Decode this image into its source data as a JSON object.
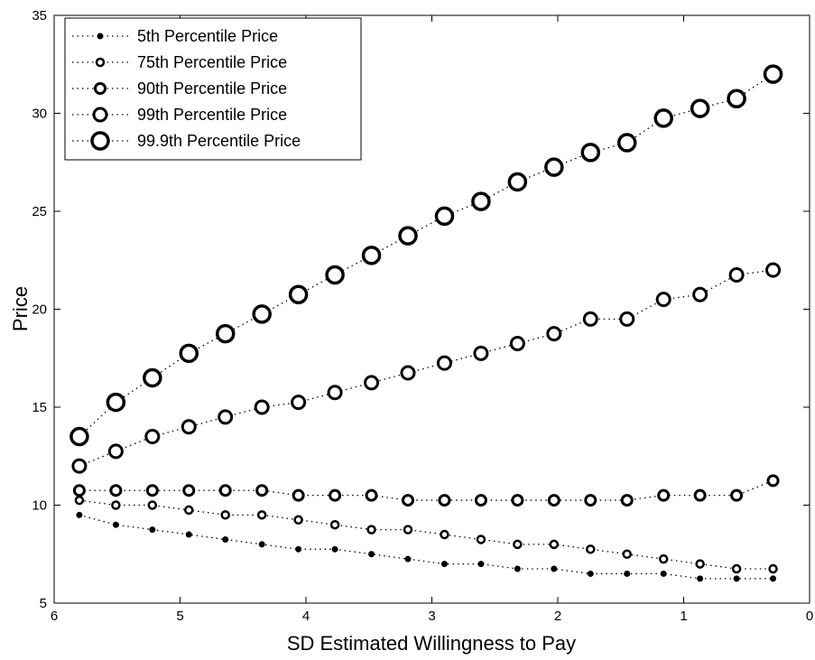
{
  "chart_data": {
    "type": "line",
    "x_label": "SD Estimated Willingness to Pay",
    "y_label": "Price",
    "x": [
      5.8,
      5.51,
      5.22,
      4.93,
      4.64,
      4.35,
      4.06,
      3.77,
      3.48,
      3.19,
      2.9,
      2.61,
      2.32,
      2.03,
      1.74,
      1.45,
      1.16,
      0.87,
      0.58,
      0.29
    ],
    "xlim": [
      6,
      0
    ],
    "xticks": [
      6,
      5,
      4,
      3,
      2,
      1,
      0
    ],
    "ylim": [
      5,
      35
    ],
    "yticks": [
      5,
      10,
      15,
      20,
      25,
      30,
      35
    ],
    "legend": "upper left",
    "series": [
      {
        "name": "5th Percentile Price",
        "color": "#000000",
        "values": [
          9.5,
          9,
          8.75,
          8.5,
          8.25,
          8,
          7.75,
          7.75,
          7.5,
          7.25,
          7,
          7,
          6.75,
          6.75,
          6.5,
          6.5,
          6.5,
          6.25,
          6.25,
          6.25
        ]
      },
      {
        "name": "75th Percentile Price",
        "color": "#000000",
        "values": [
          10.25,
          10,
          10,
          9.75,
          9.5,
          9.5,
          9.25,
          9,
          8.75,
          8.75,
          8.5,
          8.25,
          8,
          8,
          7.75,
          7.5,
          7.25,
          7,
          6.75,
          6.75
        ]
      },
      {
        "name": "90th Percentile Price",
        "color": "#000000",
        "values": [
          10.75,
          10.75,
          10.75,
          10.75,
          10.75,
          10.75,
          10.5,
          10.5,
          10.5,
          10.25,
          10.25,
          10.25,
          10.25,
          10.25,
          10.25,
          10.25,
          10.5,
          10.5,
          10.5,
          11.25
        ]
      },
      {
        "name": "99th Percentile Price",
        "color": "#000000",
        "values": [
          12,
          12.75,
          13.5,
          14,
          14.5,
          15,
          15.25,
          15.75,
          16.25,
          16.75,
          17.25,
          17.75,
          18.25,
          18.75,
          19.5,
          19.5,
          20.5,
          20.75,
          21.75,
          22
        ]
      },
      {
        "name": "99.9th Percentile Price",
        "color": "#000000",
        "values": [
          13.5,
          15.25,
          16.5,
          17.75,
          18.75,
          19.75,
          20.75,
          21.75,
          22.75,
          23.75,
          24.75,
          25.5,
          26.5,
          27.25,
          28,
          28.5,
          29.75,
          30.25,
          30.75,
          32
        ]
      }
    ]
  }
}
